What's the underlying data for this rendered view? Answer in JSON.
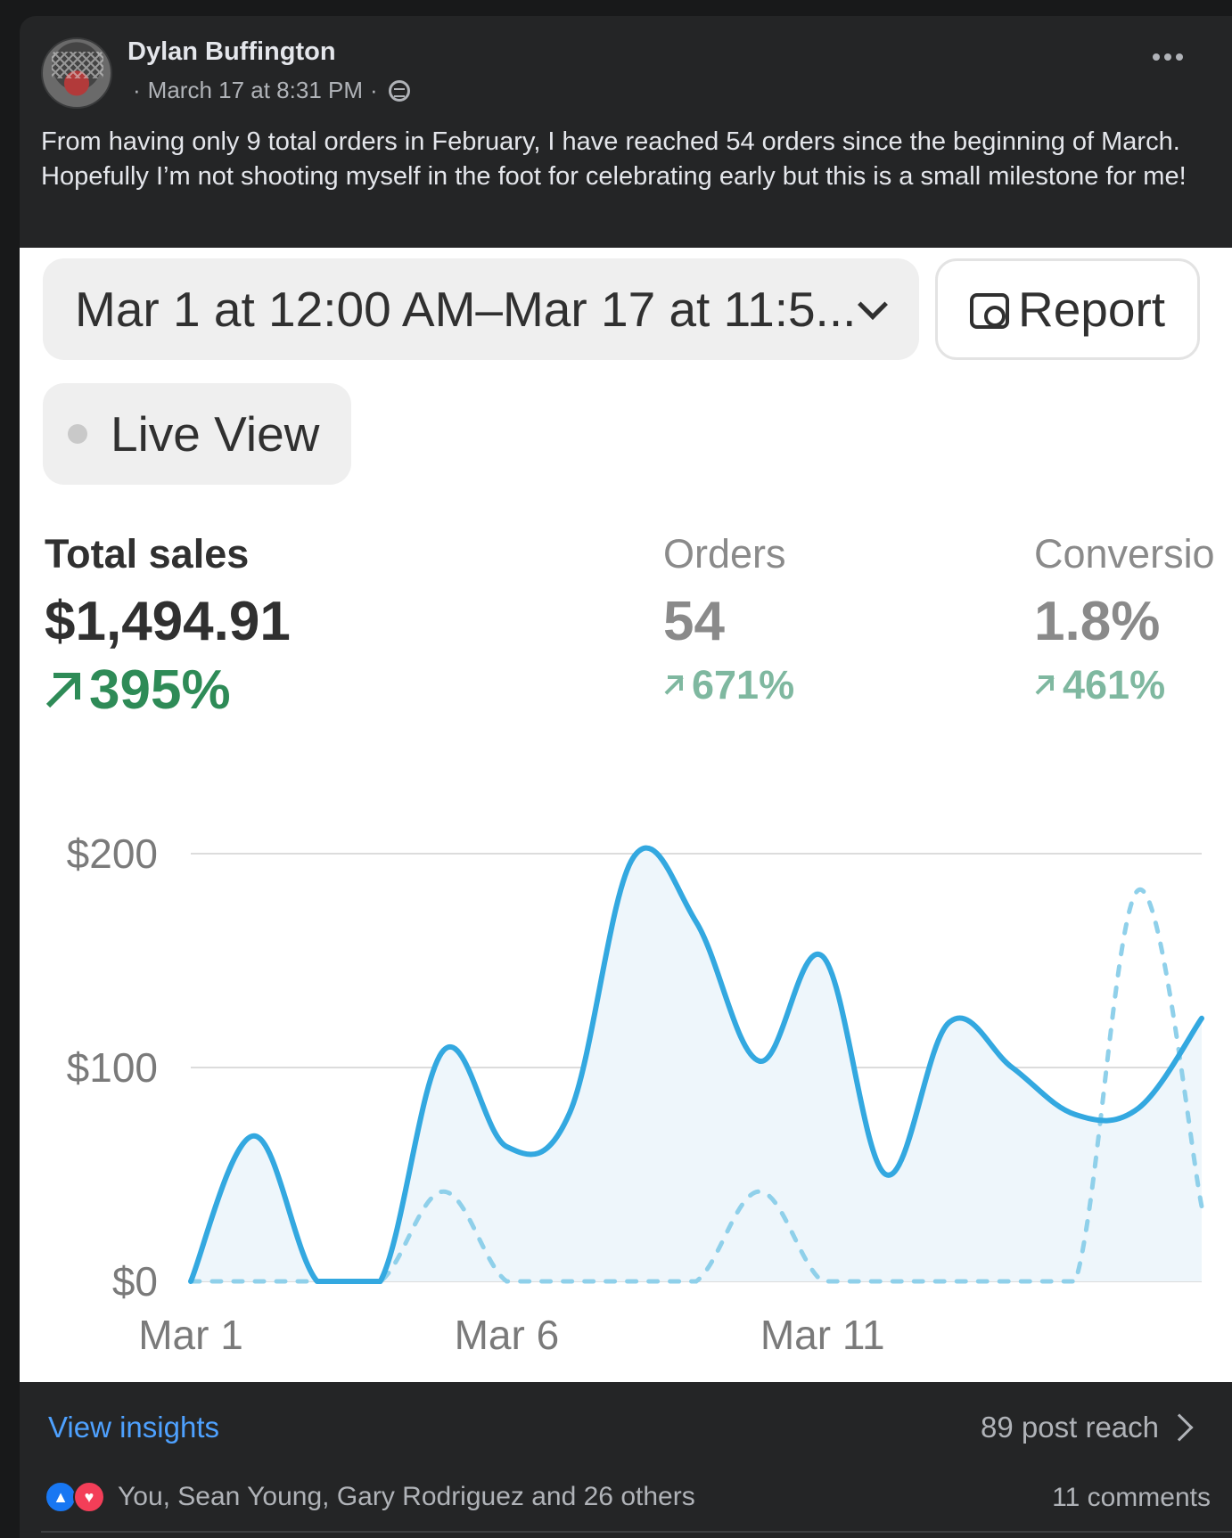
{
  "post": {
    "author": "Dylan Buffington",
    "timestamp": "March 17 at 8:31 PM",
    "meta_separator": "·",
    "privacy_icon": "globe-icon",
    "text": "From having only 9 total orders in February, I have reached 54 orders since the beginning of March. Hopefully I’m not shooting myself in the foot for celebrating early but this is a small milestone for me!"
  },
  "dashboard": {
    "date_range": "Mar 1 at 12:00 AM–Mar 17 at 11:5...",
    "report_label": "Report",
    "live_view_label": "Live View",
    "metrics": {
      "total_sales": {
        "label": "Total sales",
        "value": "$1,494.91",
        "change": "395%"
      },
      "orders": {
        "label": "Orders",
        "value": "54",
        "change": "671%"
      },
      "conversion": {
        "label": "Conversio",
        "value": "1.8%",
        "change": "461%"
      }
    }
  },
  "chart_data": {
    "type": "line",
    "x": [
      "Mar 1",
      "Mar 2",
      "Mar 3",
      "Mar 4",
      "Mar 5",
      "Mar 6",
      "Mar 7",
      "Mar 8",
      "Mar 9",
      "Mar 10",
      "Mar 11",
      "Mar 12",
      "Mar 13",
      "Mar 14",
      "Mar 15",
      "Mar 16",
      "Mar 17"
    ],
    "x_tick_labels": [
      "Mar 1",
      "Mar 6",
      "Mar 11"
    ],
    "y_tick_labels": [
      "$200",
      "$100",
      "$0"
    ],
    "ylim": [
      0,
      200
    ],
    "series": [
      {
        "style": "solid",
        "color": "#33a8e0",
        "values": [
          0,
          68,
          0,
          0,
          108,
          63,
          79,
          198,
          168,
          103,
          152,
          50,
          121,
          100,
          78,
          81,
          123
        ]
      },
      {
        "style": "dashed",
        "color": "#8fd0ea",
        "values": [
          0,
          0,
          0,
          0,
          42,
          0,
          0,
          0,
          0,
          42,
          0,
          0,
          0,
          0,
          0,
          183,
          35
        ]
      }
    ]
  },
  "footer": {
    "view_insights": "View insights",
    "post_reach": "89 post reach",
    "reactions_text": "You, Sean Young, Gary Rodriguez and 26 others",
    "comments": "11 comments"
  }
}
